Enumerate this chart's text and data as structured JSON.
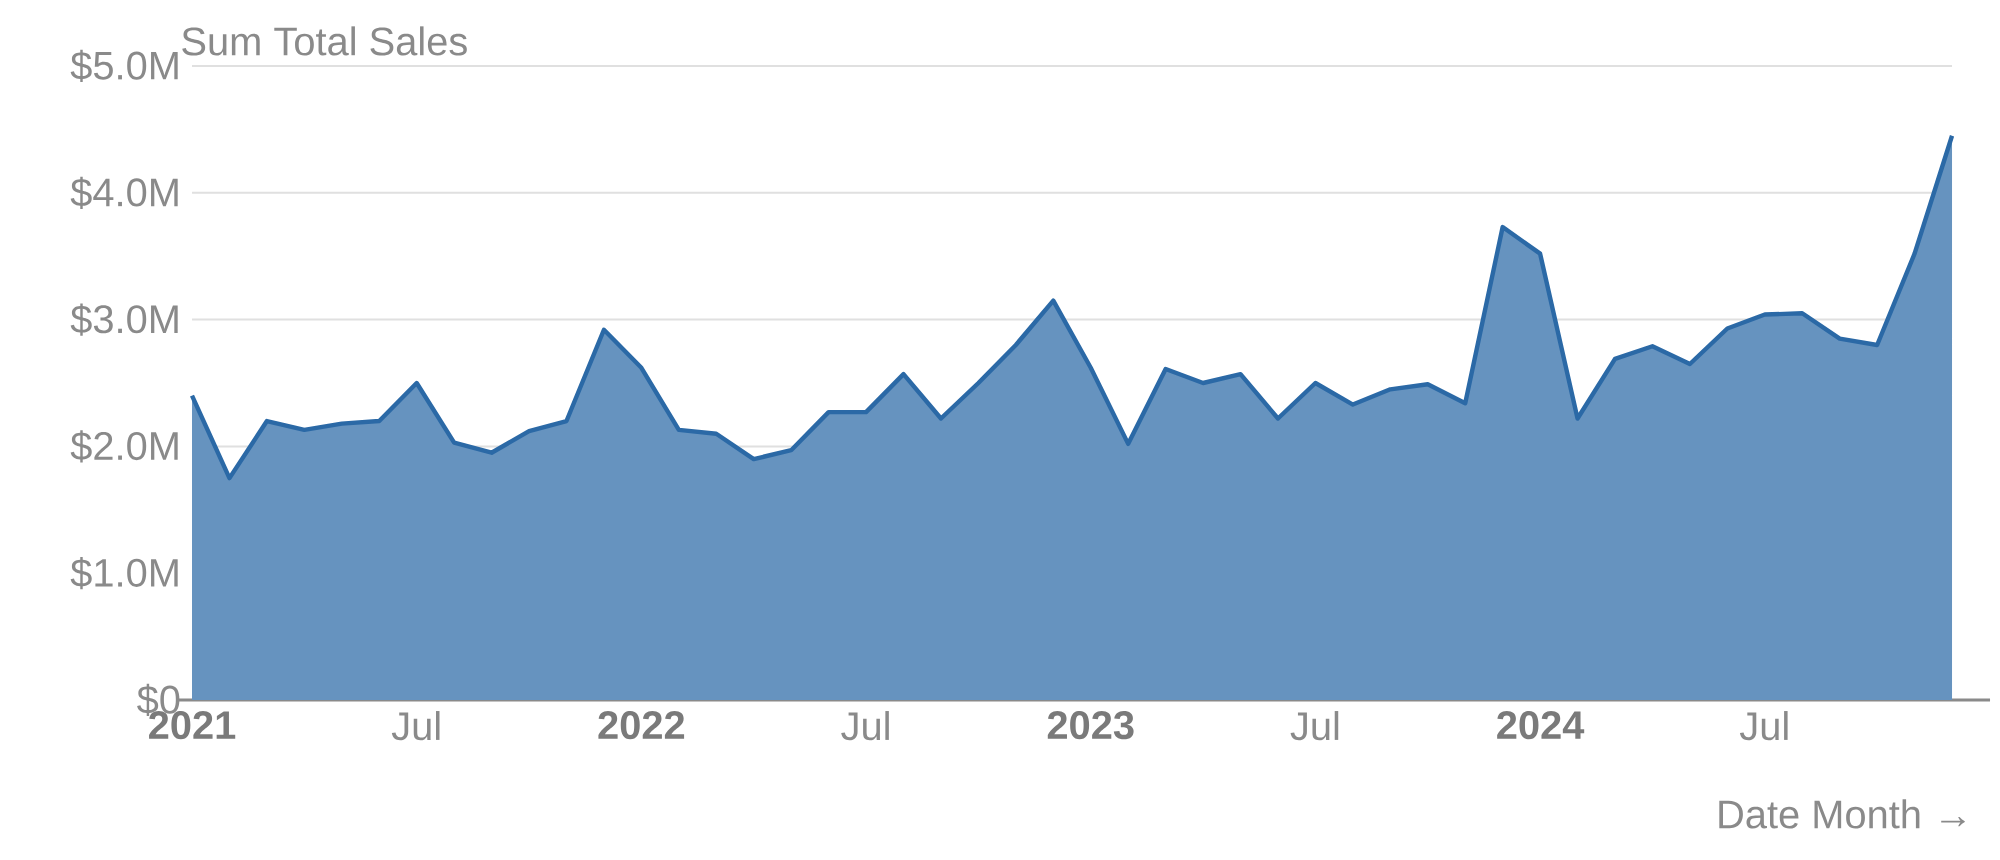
{
  "chart_data": {
    "type": "area",
    "ylabel": "Sum Total Sales",
    "xlabel": "Date Month →",
    "x": [
      "2021-01",
      "2021-02",
      "2021-03",
      "2021-04",
      "2021-05",
      "2021-06",
      "2021-07",
      "2021-08",
      "2021-09",
      "2021-10",
      "2021-11",
      "2021-12",
      "2022-01",
      "2022-02",
      "2022-03",
      "2022-04",
      "2022-05",
      "2022-06",
      "2022-07",
      "2022-08",
      "2022-09",
      "2022-10",
      "2022-11",
      "2022-12",
      "2023-01",
      "2023-02",
      "2023-03",
      "2023-04",
      "2023-05",
      "2023-06",
      "2023-07",
      "2023-08",
      "2023-09",
      "2023-10",
      "2023-11",
      "2023-12",
      "2024-01",
      "2024-02",
      "2024-03",
      "2024-04",
      "2024-05",
      "2024-06",
      "2024-07",
      "2024-08",
      "2024-09",
      "2024-10",
      "2024-11",
      "2024-12"
    ],
    "series": [
      {
        "color": "#2b69a6",
        "values": [
          2.4,
          1.75,
          2.2,
          2.13,
          2.18,
          2.2,
          2.5,
          2.03,
          1.95,
          2.12,
          2.2,
          2.92,
          2.62,
          2.13,
          2.1,
          1.9,
          1.97,
          2.27,
          2.27,
          2.57,
          2.22,
          2.5,
          2.8,
          3.15,
          2.62,
          2.02,
          2.61,
          2.5,
          2.57,
          2.22,
          2.5,
          2.33,
          2.45,
          2.49,
          2.34,
          3.73,
          3.52,
          2.22,
          2.69,
          2.79,
          2.65,
          2.93,
          3.04,
          3.05,
          2.85,
          2.8,
          3.52,
          4.45
        ]
      }
    ],
    "xlim": [
      "2021-01",
      "2024-12"
    ],
    "xticks": [
      {
        "value": "2021-01",
        "label": "2021"
      },
      {
        "value": "2021-07",
        "label": "Jul"
      },
      {
        "value": "2022-01",
        "label": "2022"
      },
      {
        "value": "2022-07",
        "label": "Jul"
      },
      {
        "value": "2023-01",
        "label": "2023"
      },
      {
        "value": "2023-07",
        "label": "Jul"
      },
      {
        "value": "2024-01",
        "label": "2024"
      },
      {
        "value": "2024-07",
        "label": "Jul"
      }
    ],
    "ylim": [
      0,
      5
    ],
    "yticks": [
      {
        "value": 0,
        "label": "$0"
      },
      {
        "value": 1,
        "label": "$1.0M"
      },
      {
        "value": 2,
        "label": "$2.0M"
      },
      {
        "value": 3,
        "label": "$3.0M"
      },
      {
        "value": 4,
        "label": "$4.0M"
      },
      {
        "value": 5,
        "label": "$5.0M"
      }
    ],
    "grid": "y",
    "marker": "none"
  }
}
